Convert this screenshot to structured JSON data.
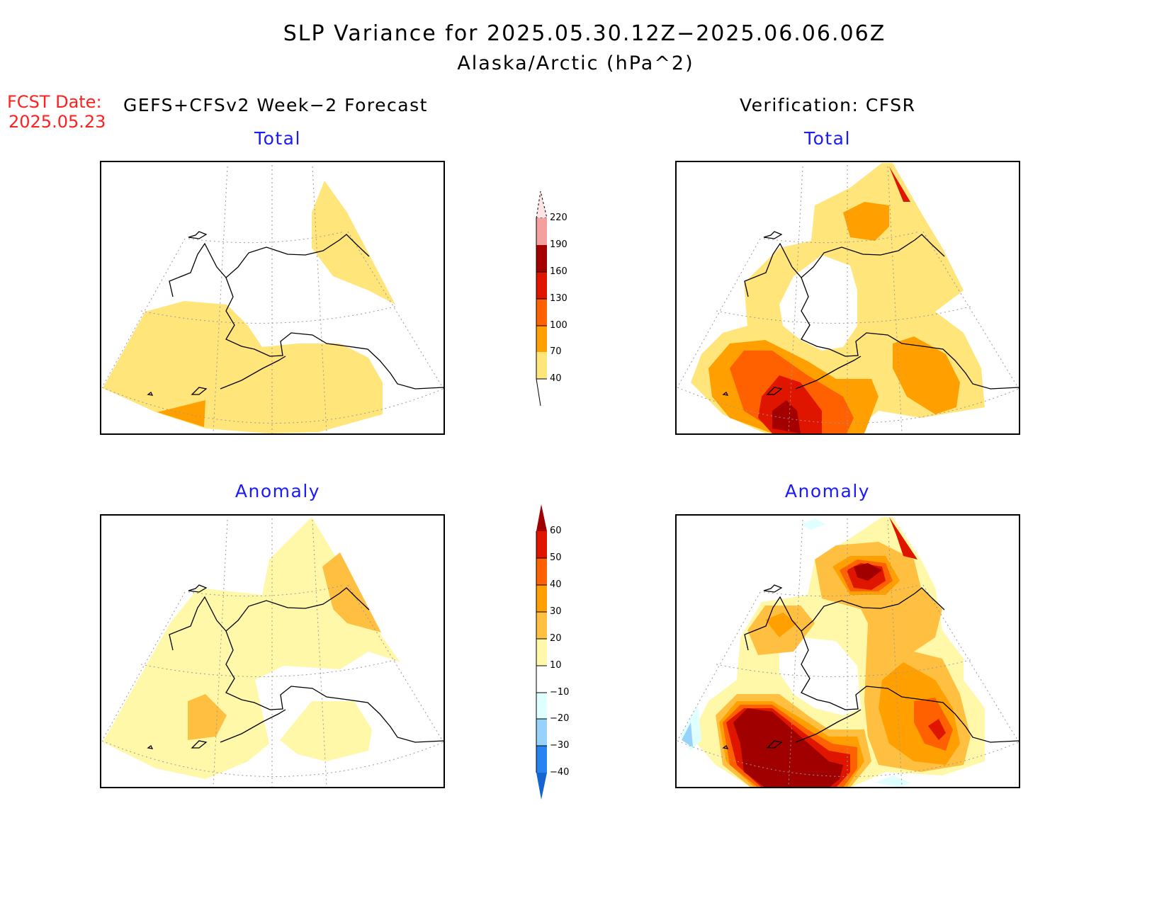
{
  "title": "SLP Variance for 2025.05.30.12Z−2025.06.06.06Z",
  "subtitle": "Alaska/Arctic (hPa^2)",
  "fcst_date_label": "FCST Date:",
  "fcst_date": "2025.05.23",
  "left_header": "GEFS+CFSv2 Week−2 Forecast",
  "right_header": "Verification: CFSR",
  "panels": {
    "forecast_total": {
      "title": "Total"
    },
    "verification_total": {
      "title": "Total"
    },
    "forecast_anomaly": {
      "title": "Anomaly"
    },
    "verification_anomaly": {
      "title": "Anomaly"
    }
  },
  "total_colorbar": {
    "labels": [
      "220",
      "190",
      "160",
      "130",
      "100",
      "70",
      "40"
    ],
    "colors": [
      "#fde3e3",
      "#f4a0a0",
      "#a50000",
      "#e01500",
      "#ff6000",
      "#ffa000",
      "#ffe57a",
      "#ffffff"
    ]
  },
  "anomaly_colorbar": {
    "labels": [
      "60",
      "50",
      "40",
      "30",
      "20",
      "10",
      "−10",
      "−20",
      "−30",
      "−40"
    ],
    "colors": [
      "#a00000",
      "#e01500",
      "#ff6000",
      "#ffa000",
      "#ffbf40",
      "#fff8a8",
      "#ffffff",
      "#e0ffff",
      "#96d2fa",
      "#2882f0",
      "#1464d2"
    ]
  }
}
